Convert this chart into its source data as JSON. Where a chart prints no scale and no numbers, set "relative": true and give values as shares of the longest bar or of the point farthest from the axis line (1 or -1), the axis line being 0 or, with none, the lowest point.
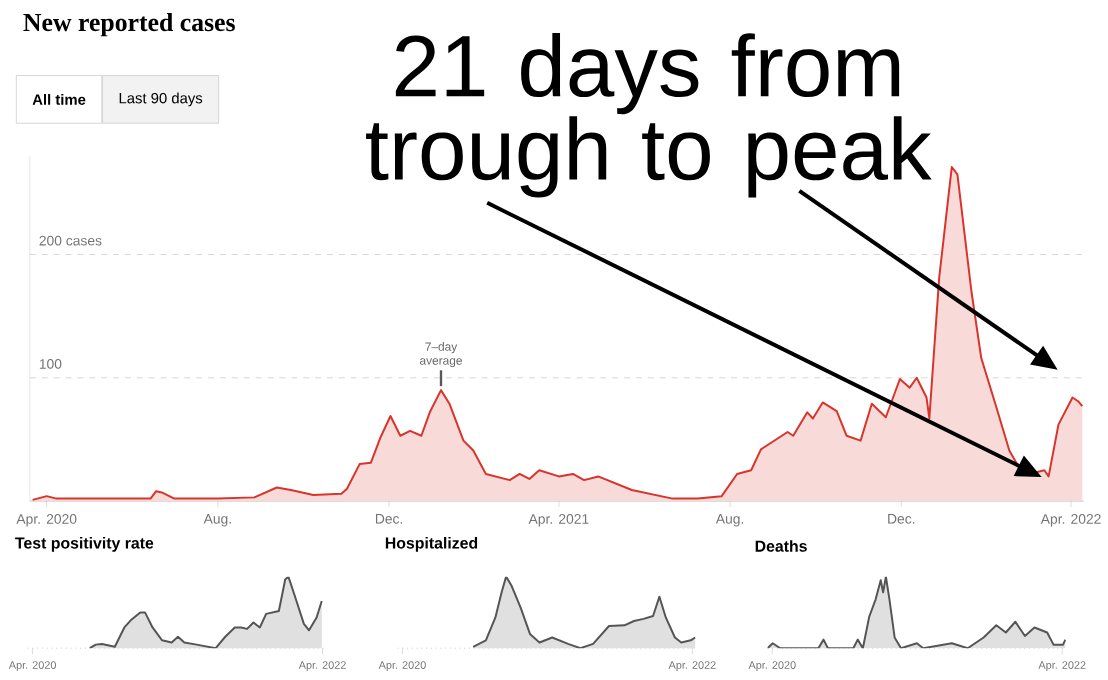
{
  "chart_data": [
    {
      "type": "area",
      "title": "New reported cases",
      "color": "#d9342b",
      "x": [
        "2020-03-22",
        "2020-04-01",
        "2020-04-08",
        "2020-05-10",
        "2020-06-14",
        "2020-06-18",
        "2020-06-22",
        "2020-07-01",
        "2020-08-01",
        "2020-08-27",
        "2020-09-12",
        "2020-09-22",
        "2020-10-08",
        "2020-10-28",
        "2020-11-01",
        "2020-11-10",
        "2020-11-18",
        "2020-11-25",
        "2020-12-02",
        "2020-12-09",
        "2020-12-16",
        "2020-12-24",
        "2020-12-30",
        "2021-01-07",
        "2021-01-13",
        "2021-01-23",
        "2021-01-30",
        "2021-02-08",
        "2021-02-25",
        "2021-03-04",
        "2021-03-11",
        "2021-03-18",
        "2021-04-01",
        "2021-04-11",
        "2021-04-19",
        "2021-04-29",
        "2021-05-23",
        "2021-06-21",
        "2021-07-09",
        "2021-07-26",
        "2021-08-06",
        "2021-08-16",
        "2021-08-23",
        "2021-09-11",
        "2021-09-15",
        "2021-09-25",
        "2021-09-29",
        "2021-10-06",
        "2021-10-16",
        "2021-10-23",
        "2021-11-02",
        "2021-11-10",
        "2021-11-20",
        "2021-11-30",
        "2021-12-07",
        "2021-12-12",
        "2021-12-19",
        "2021-12-21",
        "2021-12-28",
        "2022-01-06",
        "2022-01-10",
        "2022-01-20",
        "2022-01-27",
        "2022-02-06",
        "2022-02-16",
        "2022-02-23",
        "2022-03-02",
        "2022-03-13",
        "2022-03-16",
        "2022-03-23",
        "2022-04-02",
        "2022-04-06",
        "2022-04-09"
      ],
      "values": [
        1,
        4,
        2,
        2,
        2,
        8,
        7,
        2,
        2,
        3,
        11,
        9,
        5,
        6,
        10,
        30,
        31,
        52,
        69,
        53,
        57,
        53,
        72,
        90,
        79,
        49,
        41,
        22,
        17,
        22,
        18,
        25,
        20,
        22,
        17,
        20,
        9,
        2,
        2,
        4,
        22,
        25,
        42,
        56,
        53,
        72,
        67,
        80,
        73,
        53,
        49,
        79,
        68,
        99,
        92,
        100,
        84,
        67,
        181,
        271,
        265,
        170,
        116,
        79,
        41,
        27,
        22,
        25,
        20,
        62,
        84,
        81,
        77
      ],
      "xlim": [
        "2020-03-20",
        "2022-04-10"
      ],
      "ylim": [
        0,
        280
      ],
      "xticks": [
        {
          "value": "2020-04-01",
          "label": "Apr. 2020"
        },
        {
          "value": "2020-08-01",
          "label": "Aug."
        },
        {
          "value": "2020-12-01",
          "label": "Dec."
        },
        {
          "value": "2021-04-01",
          "label": "Apr. 2021"
        },
        {
          "value": "2021-08-01",
          "label": "Aug."
        },
        {
          "value": "2021-12-01",
          "label": "Dec."
        },
        {
          "value": "2022-04-01",
          "label": "Apr. 2022"
        }
      ],
      "yticks": [
        {
          "value": 100,
          "label": "100"
        },
        {
          "value": 200,
          "label": "200 cases"
        }
      ],
      "grid": "y",
      "annotations": [
        "All time",
        "Last 90 days",
        "21 days from trough to peak",
        {
          "text": "7–day average",
          "x": "2021-01-07",
          "y": 90
        }
      ]
    },
    {
      "type": "area",
      "title": "Test positivity rate",
      "color": "#555555",
      "relative": true,
      "tick_labels": "x",
      "x": [
        "2020-08-23",
        "2020-09-07",
        "2020-09-23",
        "2020-10-25",
        "2020-11-18",
        "2020-12-04",
        "2020-12-28",
        "2021-01-09",
        "2021-01-28",
        "2021-02-21",
        "2021-03-17",
        "2021-04-02",
        "2021-04-18",
        "2021-05-19",
        "2021-07-06",
        "2021-07-30",
        "2021-08-23",
        "2021-09-08",
        "2021-09-23",
        "2021-10-09",
        "2021-10-25",
        "2021-11-10",
        "2021-12-12",
        "2021-12-28",
        "2022-01-05",
        "2022-01-20",
        "2022-02-13",
        "2022-02-26",
        "2022-03-17",
        "2022-03-30"
      ],
      "values": [
        0,
        0.05,
        0.06,
        0.02,
        0.29,
        0.39,
        0.5,
        0.5,
        0.29,
        0.11,
        0.08,
        0.16,
        0.08,
        0.05,
        0,
        0.16,
        0.29,
        0.29,
        0.27,
        0.36,
        0.29,
        0.48,
        0.52,
        0.96,
        1,
        0.75,
        0.34,
        0.25,
        0.43,
        0.66
      ],
      "xlim": [
        "2020-03-20",
        "2022-04-10"
      ],
      "xticks": [
        {
          "value": "2020-04-01",
          "label": "Apr. 2020"
        },
        {
          "value": "2022-04-01",
          "label": "Apr. 2022"
        }
      ]
    },
    {
      "type": "area",
      "title": "Hospitalized",
      "color": "#555555",
      "relative": true,
      "tick_labels": "x",
      "x": [
        "2020-09-26",
        "2020-10-28",
        "2020-11-21",
        "2020-12-07",
        "2020-12-18",
        "2020-12-31",
        "2021-01-24",
        "2021-02-16",
        "2021-03-12",
        "2021-04-13",
        "2021-05-23",
        "2021-06-23",
        "2021-07-25",
        "2021-09-03",
        "2021-10-12",
        "2021-11-05",
        "2021-11-29",
        "2021-12-23",
        "2022-01-08",
        "2022-01-24",
        "2022-02-16",
        "2022-03-04",
        "2022-03-28",
        "2022-04-08"
      ],
      "values": [
        0.02,
        0.11,
        0.43,
        0.79,
        1,
        0.88,
        0.56,
        0.2,
        0.08,
        0.15,
        0.06,
        0,
        0.06,
        0.31,
        0.32,
        0.38,
        0.41,
        0.45,
        0.72,
        0.43,
        0.15,
        0.08,
        0.11,
        0.15
      ],
      "xlim": [
        "2020-03-20",
        "2022-04-10"
      ],
      "xticks": [
        {
          "value": "2020-04-01",
          "label": "Apr. 2020"
        },
        {
          "value": "2022-04-01",
          "label": "Apr. 2022"
        }
      ]
    },
    {
      "type": "area",
      "title": "Deaths",
      "color": "#555555",
      "relative": true,
      "tick_labels": "x",
      "x": [
        "2020-03-20",
        "2020-04-02",
        "2020-04-21",
        "2020-07-26",
        "2020-08-08",
        "2020-08-19",
        "2020-10-22",
        "2020-11-02",
        "2020-11-15",
        "2020-12-01",
        "2020-12-17",
        "2020-12-30",
        "2021-01-05",
        "2021-01-12",
        "2021-01-21",
        "2021-02-03",
        "2021-02-19",
        "2021-03-31",
        "2021-04-16",
        "2021-06-27",
        "2021-08-06",
        "2021-09-15",
        "2021-10-17",
        "2021-11-10",
        "2021-12-04",
        "2021-12-28",
        "2022-01-21",
        "2022-02-22",
        "2022-03-10",
        "2022-04-03",
        "2022-04-09"
      ],
      "values": [
        0,
        0.07,
        0,
        0,
        0.12,
        0,
        0,
        0.12,
        0,
        0.44,
        0.68,
        0.95,
        0.78,
        1,
        0.68,
        0.15,
        0,
        0.07,
        0,
        0.07,
        0,
        0.15,
        0.32,
        0.22,
        0.37,
        0.17,
        0.29,
        0.22,
        0.05,
        0.05,
        0.12
      ],
      "xlim": [
        "2020-03-20",
        "2022-04-10"
      ],
      "xticks": [
        {
          "value": "2020-04-01",
          "label": "Apr. 2020"
        },
        {
          "value": "2022-04-01",
          "label": "Apr. 2022"
        }
      ]
    }
  ]
}
